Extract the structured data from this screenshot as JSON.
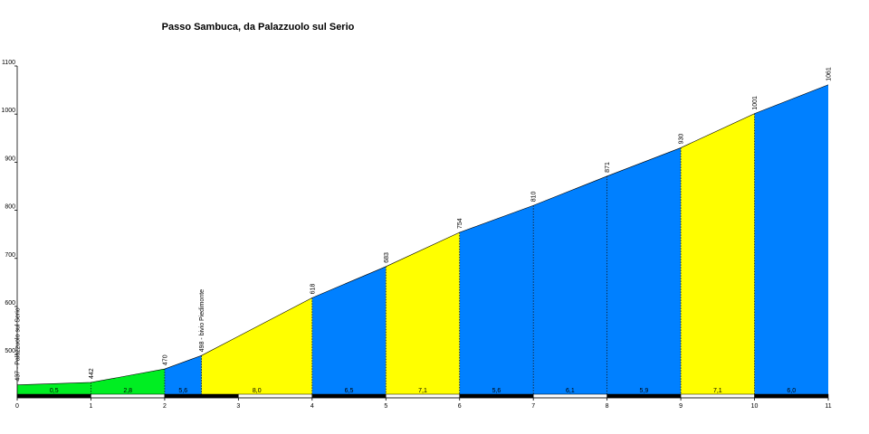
{
  "chart_data": {
    "type": "profile",
    "title": "Passo Sambuca, da Palazzuolo sul Serio",
    "x": [
      0,
      1,
      2,
      2.5,
      4,
      5,
      6,
      7,
      8,
      9,
      10,
      11
    ],
    "values": [
      437,
      442,
      470,
      498,
      618,
      683,
      754,
      810,
      871,
      930,
      1001,
      1061
    ],
    "value_labels": [
      "437 - Palazzuolo sul Serio",
      "442",
      "470",
      "498 - bivio Piedimonte",
      "618",
      "683",
      "754",
      "810",
      "871",
      "930",
      "1001",
      "1061"
    ],
    "segments": {
      "values": [
        0.5,
        2.8,
        5.6,
        8.0,
        6.5,
        7.1,
        5.6,
        6.1,
        5.9,
        7.1,
        6.0
      ],
      "value_labels": [
        "0,5",
        "2,8",
        "5,6",
        "8,0",
        "6,5",
        "7,1",
        "5,6",
        "6,1",
        "5,9",
        "7,1",
        "6,0"
      ],
      "colors": [
        "#00ee22",
        "#00ee22",
        "#0080ff",
        "#ffff00",
        "#0080ff",
        "#ffff00",
        "#0080ff",
        "#0080ff",
        "#0080ff",
        "#ffff00",
        "#0080ff"
      ]
    },
    "xlim": [
      0,
      11
    ],
    "ylim": [
      410,
      1100
    ],
    "xticks": [
      0,
      1,
      2,
      3,
      4,
      5,
      6,
      7,
      8,
      9,
      10,
      11
    ],
    "yticks": [
      500,
      600,
      700,
      800,
      900,
      1000,
      1100
    ]
  }
}
